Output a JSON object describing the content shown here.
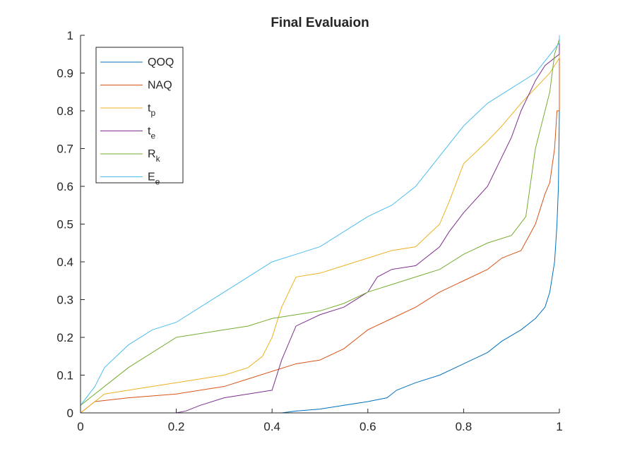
{
  "chart_data": {
    "type": "line",
    "title": "Final Evaluaion",
    "xlabel": "",
    "ylabel": "",
    "xlim": [
      0,
      1
    ],
    "ylim": [
      0,
      1
    ],
    "xticks": [
      0,
      0.2,
      0.4,
      0.6,
      0.8,
      1
    ],
    "xtick_labels": [
      "0",
      "0.2",
      "0.4",
      "0.6",
      "0.8",
      "1"
    ],
    "yticks": [
      0,
      0.1,
      0.2,
      0.3,
      0.4,
      0.5,
      0.6,
      0.7,
      0.8,
      0.9,
      1
    ],
    "ytick_labels": [
      "0",
      "0.1",
      "0.2",
      "0.3",
      "0.4",
      "0.5",
      "0.6",
      "0.7",
      "0.8",
      "0.9",
      "1"
    ],
    "grid": false,
    "legend_position": "top-left",
    "series": [
      {
        "name": "QOQ",
        "label_main": "QOQ",
        "label_sub": "",
        "color": "#0072BD",
        "points": [
          [
            0,
            0
          ],
          [
            0.42,
            0
          ],
          [
            0.45,
            0.005
          ],
          [
            0.5,
            0.01
          ],
          [
            0.55,
            0.02
          ],
          [
            0.6,
            0.03
          ],
          [
            0.64,
            0.04
          ],
          [
            0.66,
            0.06
          ],
          [
            0.7,
            0.08
          ],
          [
            0.75,
            0.1
          ],
          [
            0.8,
            0.13
          ],
          [
            0.85,
            0.16
          ],
          [
            0.88,
            0.19
          ],
          [
            0.92,
            0.22
          ],
          [
            0.95,
            0.25
          ],
          [
            0.97,
            0.28
          ],
          [
            0.98,
            0.32
          ],
          [
            0.99,
            0.4
          ],
          [
            0.995,
            0.5
          ],
          [
            0.998,
            0.6
          ],
          [
            1,
            0.8
          ],
          [
            1,
            1
          ]
        ]
      },
      {
        "name": "NAQ",
        "label_main": "NAQ",
        "label_sub": "",
        "color": "#D95319",
        "points": [
          [
            0,
            0
          ],
          [
            0.03,
            0.03
          ],
          [
            0.1,
            0.04
          ],
          [
            0.2,
            0.05
          ],
          [
            0.3,
            0.07
          ],
          [
            0.35,
            0.09
          ],
          [
            0.4,
            0.11
          ],
          [
            0.45,
            0.13
          ],
          [
            0.5,
            0.14
          ],
          [
            0.55,
            0.17
          ],
          [
            0.6,
            0.22
          ],
          [
            0.65,
            0.25
          ],
          [
            0.7,
            0.28
          ],
          [
            0.75,
            0.32
          ],
          [
            0.8,
            0.35
          ],
          [
            0.85,
            0.38
          ],
          [
            0.88,
            0.41
          ],
          [
            0.9,
            0.42
          ],
          [
            0.92,
            0.43
          ],
          [
            0.95,
            0.5
          ],
          [
            0.97,
            0.58
          ],
          [
            0.98,
            0.61
          ],
          [
            0.99,
            0.7
          ],
          [
            0.995,
            0.8
          ],
          [
            1,
            0.8
          ],
          [
            1,
            1
          ]
        ]
      },
      {
        "name": "t_p",
        "label_main": "t",
        "label_sub": "p",
        "color": "#EDB120",
        "points": [
          [
            0,
            0
          ],
          [
            0.05,
            0.05
          ],
          [
            0.1,
            0.06
          ],
          [
            0.15,
            0.07
          ],
          [
            0.2,
            0.08
          ],
          [
            0.25,
            0.09
          ],
          [
            0.3,
            0.1
          ],
          [
            0.35,
            0.12
          ],
          [
            0.38,
            0.15
          ],
          [
            0.4,
            0.2
          ],
          [
            0.42,
            0.28
          ],
          [
            0.45,
            0.36
          ],
          [
            0.5,
            0.37
          ],
          [
            0.55,
            0.39
          ],
          [
            0.6,
            0.41
          ],
          [
            0.65,
            0.43
          ],
          [
            0.7,
            0.44
          ],
          [
            0.75,
            0.5
          ],
          [
            0.77,
            0.56
          ],
          [
            0.8,
            0.66
          ],
          [
            0.85,
            0.72
          ],
          [
            0.88,
            0.76
          ],
          [
            0.92,
            0.82
          ],
          [
            0.95,
            0.86
          ],
          [
            0.98,
            0.9
          ],
          [
            1,
            0.94
          ],
          [
            1,
            1
          ]
        ]
      },
      {
        "name": "t_e",
        "label_main": "t",
        "label_sub": "e",
        "color": "#7E2F8E",
        "points": [
          [
            0,
            0
          ],
          [
            0.2,
            0
          ],
          [
            0.22,
            0.005
          ],
          [
            0.25,
            0.02
          ],
          [
            0.3,
            0.04
          ],
          [
            0.35,
            0.05
          ],
          [
            0.4,
            0.06
          ],
          [
            0.42,
            0.14
          ],
          [
            0.45,
            0.23
          ],
          [
            0.5,
            0.26
          ],
          [
            0.55,
            0.28
          ],
          [
            0.6,
            0.32
          ],
          [
            0.62,
            0.36
          ],
          [
            0.65,
            0.38
          ],
          [
            0.7,
            0.39
          ],
          [
            0.75,
            0.44
          ],
          [
            0.77,
            0.48
          ],
          [
            0.8,
            0.53
          ],
          [
            0.85,
            0.6
          ],
          [
            0.9,
            0.73
          ],
          [
            0.92,
            0.8
          ],
          [
            0.95,
            0.88
          ],
          [
            0.97,
            0.92
          ],
          [
            1,
            0.95
          ],
          [
            1,
            1
          ]
        ]
      },
      {
        "name": "R_k",
        "label_main": "R",
        "label_sub": "k",
        "color": "#77AC30",
        "points": [
          [
            0,
            0.02
          ],
          [
            0.05,
            0.07
          ],
          [
            0.1,
            0.12
          ],
          [
            0.15,
            0.16
          ],
          [
            0.2,
            0.2
          ],
          [
            0.25,
            0.21
          ],
          [
            0.3,
            0.22
          ],
          [
            0.35,
            0.23
          ],
          [
            0.4,
            0.25
          ],
          [
            0.45,
            0.26
          ],
          [
            0.5,
            0.27
          ],
          [
            0.55,
            0.29
          ],
          [
            0.6,
            0.32
          ],
          [
            0.65,
            0.34
          ],
          [
            0.7,
            0.36
          ],
          [
            0.75,
            0.38
          ],
          [
            0.8,
            0.42
          ],
          [
            0.85,
            0.45
          ],
          [
            0.9,
            0.47
          ],
          [
            0.93,
            0.52
          ],
          [
            0.95,
            0.7
          ],
          [
            0.97,
            0.8
          ],
          [
            0.98,
            0.85
          ],
          [
            0.99,
            0.95
          ],
          [
            1,
            0.99
          ],
          [
            1,
            1
          ]
        ]
      },
      {
        "name": "E_e",
        "label_main": "E",
        "label_sub": "e",
        "color": "#4DBEEE",
        "points": [
          [
            0,
            0.02
          ],
          [
            0.03,
            0.07
          ],
          [
            0.05,
            0.12
          ],
          [
            0.1,
            0.18
          ],
          [
            0.15,
            0.22
          ],
          [
            0.2,
            0.24
          ],
          [
            0.25,
            0.28
          ],
          [
            0.3,
            0.32
          ],
          [
            0.35,
            0.36
          ],
          [
            0.4,
            0.4
          ],
          [
            0.45,
            0.42
          ],
          [
            0.5,
            0.44
          ],
          [
            0.55,
            0.48
          ],
          [
            0.6,
            0.52
          ],
          [
            0.65,
            0.55
          ],
          [
            0.7,
            0.6
          ],
          [
            0.75,
            0.68
          ],
          [
            0.8,
            0.76
          ],
          [
            0.85,
            0.82
          ],
          [
            0.9,
            0.86
          ],
          [
            0.95,
            0.9
          ],
          [
            1,
            0.98
          ],
          [
            1,
            1
          ]
        ]
      }
    ]
  }
}
